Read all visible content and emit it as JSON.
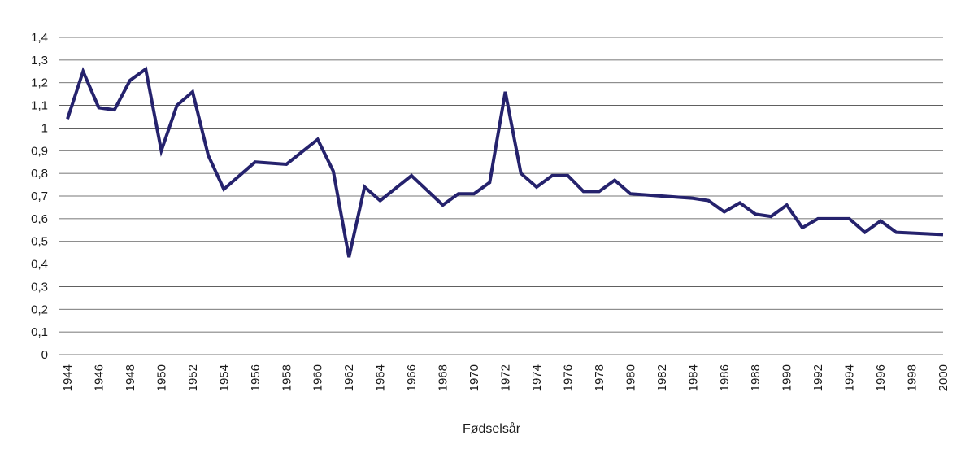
{
  "chart_data": {
    "type": "line",
    "title": "",
    "xlabel": "Fødselsår",
    "ylabel": "",
    "xlim": [
      1944,
      2000
    ],
    "ylim": [
      0,
      1.4
    ],
    "y_ticks": [
      0,
      0.1,
      0.2,
      0.3,
      0.4,
      0.5,
      0.6,
      0.7,
      0.8,
      0.9,
      1.0,
      1.1,
      1.2,
      1.3,
      1.4
    ],
    "y_tick_labels": [
      "0",
      "0,1",
      "0,2",
      "0,3",
      "0,4",
      "0,5",
      "0,6",
      "0,7",
      "0,8",
      "0,9",
      "1",
      "1,1",
      "1,2",
      "1,3",
      "1,4"
    ],
    "x_ticks": [
      1944,
      1946,
      1948,
      1950,
      1952,
      1954,
      1956,
      1958,
      1960,
      1962,
      1964,
      1966,
      1968,
      1970,
      1972,
      1974,
      1976,
      1978,
      1980,
      1982,
      1984,
      1986,
      1988,
      1990,
      1992,
      1994,
      1996,
      1998,
      2000
    ],
    "x_tick_labels": [
      "1944",
      "1946",
      "1948",
      "1950",
      "1952",
      "1954",
      "1956",
      "1958",
      "1960",
      "1962",
      "1964",
      "1966",
      "1968",
      "1970",
      "1972",
      "1974",
      "1976",
      "1978",
      "1980",
      "1982",
      "1984",
      "1986",
      "1988",
      "1990",
      "1992",
      "1994",
      "1996",
      "1998",
      "2000"
    ],
    "grid": "horizontal",
    "legend": "none",
    "series": [
      {
        "color": "#25226d",
        "x": [
          1944,
          1945,
          1946,
          1947,
          1948,
          1949,
          1950,
          1951,
          1952,
          1953,
          1954,
          1956,
          1958,
          1960,
          1961,
          1962,
          1963,
          1964,
          1966,
          1968,
          1969,
          1970,
          1971,
          1972,
          1973,
          1974,
          1975,
          1976,
          1977,
          1978,
          1979,
          1980,
          1982,
          1984,
          1985,
          1986,
          1987,
          1988,
          1989,
          1990,
          1991,
          1992,
          1994,
          1995,
          1996,
          1997,
          2000
        ],
        "y": [
          1.04,
          1.25,
          1.09,
          1.08,
          1.21,
          1.26,
          0.9,
          1.1,
          1.16,
          0.88,
          0.73,
          0.85,
          0.84,
          0.95,
          0.81,
          0.43,
          0.74,
          0.68,
          0.79,
          0.66,
          0.71,
          0.71,
          0.76,
          1.16,
          0.8,
          0.74,
          0.79,
          0.79,
          0.72,
          0.72,
          0.77,
          0.71,
          0.7,
          0.69,
          0.68,
          0.63,
          0.67,
          0.62,
          0.61,
          0.66,
          0.56,
          0.6,
          0.6,
          0.54,
          0.59,
          0.54,
          0.53
        ]
      }
    ]
  }
}
